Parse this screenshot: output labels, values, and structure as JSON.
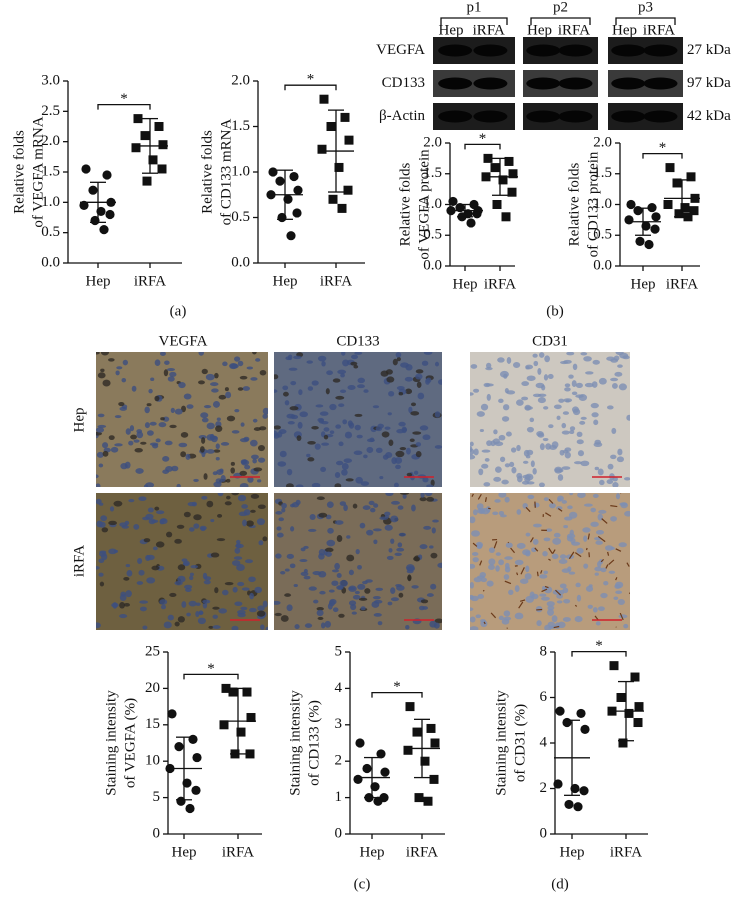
{
  "chart_data": [
    {
      "type": "dotplot",
      "ylabel": [
        "Relative folds",
        "of VEGFA mRNA"
      ],
      "categories": [
        "Hep",
        "iRFA"
      ],
      "markers": [
        "circle",
        "square"
      ],
      "color": "#111111",
      "values": [
        [
          1.55,
          1.45,
          1.2,
          1.0,
          0.95,
          0.85,
          0.8,
          0.7,
          0.55
        ],
        [
          2.38,
          2.25,
          2.1,
          1.95,
          1.9,
          1.7,
          1.55,
          1.35
        ]
      ],
      "mean": [
        1.0,
        1.93
      ],
      "sd": [
        0.33,
        0.45
      ],
      "ylim": [
        0,
        3
      ],
      "yticks": [
        {
          "value": 0,
          "label": "0.0"
        },
        0.5,
        {
          "value": 1,
          "label": "1.0"
        },
        1.5,
        {
          "value": 2,
          "label": "2.0"
        },
        2.5,
        {
          "value": 3,
          "label": "3.0"
        }
      ],
      "annotation": "*"
    },
    {
      "type": "dotplot",
      "ylabel": [
        "Relative folds",
        "of CD133 mRNA"
      ],
      "categories": [
        "Hep",
        "iRFA"
      ],
      "markers": [
        "circle",
        "square"
      ],
      "color": "#111111",
      "values": [
        [
          1.0,
          0.95,
          0.9,
          0.8,
          0.75,
          0.7,
          0.55,
          0.5,
          0.3
        ],
        [
          1.8,
          1.6,
          1.5,
          1.35,
          1.25,
          1.05,
          0.8,
          0.7,
          0.6
        ]
      ],
      "mean": [
        0.75,
        1.23
      ],
      "sd": [
        0.27,
        0.45
      ],
      "ylim": [
        0,
        2
      ],
      "yticks": [
        {
          "value": 0,
          "label": "0.0"
        },
        0.5,
        {
          "value": 1,
          "label": "1.0"
        },
        1.5,
        {
          "value": 2,
          "label": "2.0"
        }
      ],
      "annotation": "*"
    },
    {
      "type": "dotplot",
      "ylabel": [
        "Relative folds",
        "of VEGFA protein"
      ],
      "categories": [
        "Hep",
        "iRFA"
      ],
      "markers": [
        "circle",
        "square"
      ],
      "color": "#111111",
      "values": [
        [
          1.05,
          1.0,
          0.95,
          0.9,
          0.9,
          0.85,
          0.85,
          0.8,
          0.7
        ],
        [
          1.75,
          1.7,
          1.6,
          1.5,
          1.45,
          1.4,
          1.2,
          1.0,
          0.8
        ]
      ],
      "mean": [
        0.9,
        1.45
      ],
      "sd": [
        0.1,
        0.3
      ],
      "ylim": [
        0,
        2
      ],
      "yticks": [
        {
          "value": 0,
          "label": "0.0"
        },
        0.5,
        {
          "value": 1,
          "label": "1.0"
        },
        1.5,
        {
          "value": 2,
          "label": "2.0"
        }
      ],
      "annotation": "*"
    },
    {
      "type": "dotplot",
      "ylabel": [
        "Relative folds",
        "of CD133 protein"
      ],
      "categories": [
        "Hep",
        "iRFA"
      ],
      "markers": [
        "circle",
        "square"
      ],
      "color": "#111111",
      "values": [
        [
          1.0,
          0.95,
          0.9,
          0.8,
          0.75,
          0.65,
          0.6,
          0.4,
          0.35
        ],
        [
          1.6,
          1.45,
          1.35,
          1.1,
          1.0,
          0.95,
          0.9,
          0.85,
          0.8
        ]
      ],
      "mean": [
        0.72,
        1.1
      ],
      "sd": [
        0.22,
        0.3
      ],
      "ylim": [
        0,
        2
      ],
      "yticks": [
        {
          "value": 0,
          "label": "0.0"
        },
        0.5,
        {
          "value": 1,
          "label": "1.0"
        },
        1.5,
        {
          "value": 2,
          "label": "2.0"
        }
      ],
      "annotation": "*"
    },
    {
      "type": "dotplot",
      "ylabel": [
        "Staining intensity",
        "of VEGFA (%)"
      ],
      "categories": [
        "Hep",
        "iRFA"
      ],
      "markers": [
        "circle",
        "square"
      ],
      "color": "#111111",
      "values": [
        [
          16.5,
          13,
          12,
          10.5,
          9,
          7,
          6,
          4.5,
          3.5
        ],
        [
          20,
          19.5,
          19.5,
          16,
          15,
          14,
          11,
          11
        ]
      ],
      "mean": [
        9,
        15.5
      ],
      "sd": [
        4.3,
        4.5
      ],
      "ylim": [
        0,
        25
      ],
      "yticks": [
        0,
        5,
        10,
        15,
        20,
        25
      ],
      "annotation": "*"
    },
    {
      "type": "dotplot",
      "ylabel": [
        "Staining intensity",
        "of CD133 (%)"
      ],
      "categories": [
        "Hep",
        "iRFA"
      ],
      "markers": [
        "circle",
        "square"
      ],
      "color": "#111111",
      "values": [
        [
          2.5,
          2.2,
          1.8,
          1.7,
          1.5,
          1.3,
          1.0,
          1.0,
          0.9
        ],
        [
          3.5,
          2.9,
          2.8,
          2.5,
          2.3,
          2.0,
          1.5,
          1.0,
          0.9
        ]
      ],
      "mean": [
        1.55,
        2.35
      ],
      "sd": [
        0.55,
        0.8
      ],
      "ylim": [
        0,
        5
      ],
      "yticks": [
        0,
        1,
        2,
        3,
        4,
        5
      ],
      "annotation": "*"
    },
    {
      "type": "dotplot",
      "ylabel": [
        "Staining intensity",
        "of CD31 (%)"
      ],
      "categories": [
        "Hep",
        "iRFA"
      ],
      "markers": [
        "circle",
        "square"
      ],
      "color": "#111111",
      "values": [
        [
          5.4,
          5.3,
          4.9,
          4.6,
          2.2,
          2.0,
          1.9,
          1.3,
          1.2
        ],
        [
          7.4,
          6.9,
          6.0,
          5.6,
          5.4,
          5.3,
          4.9,
          4.0
        ]
      ],
      "mean": [
        3.35,
        5.4
      ],
      "sd": [
        1.65,
        1.3
      ],
      "ylim": [
        0,
        8
      ],
      "yticks": [
        0,
        2,
        4,
        6,
        8
      ],
      "annotation": "*"
    }
  ],
  "western_blot": {
    "patients": [
      "p1",
      "p2",
      "p3"
    ],
    "lanes": [
      "Hep",
      "iRFA"
    ],
    "proteins": [
      "VEGFA",
      "CD133",
      "β-Actin"
    ],
    "sizes": [
      "27 kDa",
      "97 kDa",
      "42 kDa"
    ]
  },
  "ihc": {
    "columns": [
      "VEGFA",
      "CD133",
      "CD31"
    ],
    "rows": [
      "Hep",
      "iRFA"
    ]
  },
  "panel_labels": [
    "(a)",
    "(b)",
    "(c)",
    "(d)"
  ]
}
